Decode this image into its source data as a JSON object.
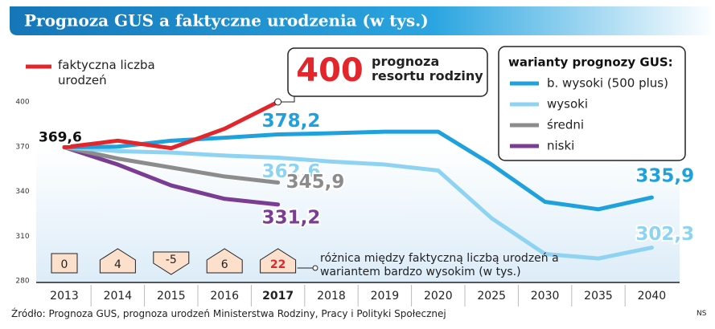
{
  "chart_data": {
    "type": "line",
    "title": "Prognoza GUS a faktyczne urodzenia (w tys.)",
    "categories": [
      "2013",
      "2014",
      "2015",
      "2016",
      "2017",
      "2018",
      "2019",
      "2020",
      "2025",
      "2030",
      "2035",
      "2040"
    ],
    "ylim": [
      280,
      400
    ],
    "yticks": [
      280,
      310,
      340,
      370,
      400
    ],
    "grid": false,
    "legend_title": "warianty prognozy GUS:",
    "series": [
      {
        "name": "faktyczna liczba urodzeń",
        "color": "#e3262b",
        "values": [
          369.6,
          374,
          369,
          382,
          400,
          null,
          null,
          null,
          null,
          null,
          null,
          null
        ],
        "value_labels": [
          "369,6",
          null,
          null,
          null,
          null,
          null,
          null,
          null,
          null,
          null,
          null,
          null
        ]
      },
      {
        "name": "b. wysoki (500 plus)",
        "color": "#1ea1dc",
        "values": [
          369.6,
          370,
          374,
          376,
          378.2,
          379,
          380,
          380,
          358,
          333,
          328,
          335.9
        ],
        "value_labels": [
          null,
          null,
          null,
          null,
          "378,2",
          null,
          null,
          null,
          null,
          null,
          null,
          "335,9"
        ]
      },
      {
        "name": "wysoki",
        "color": "#8fd3f2",
        "values": [
          369.6,
          367,
          366,
          364,
          362.6,
          360,
          358,
          354,
          322,
          298,
          295,
          302.3
        ],
        "value_labels": [
          null,
          null,
          null,
          null,
          "362,6",
          null,
          null,
          null,
          null,
          null,
          null,
          "302,3"
        ]
      },
      {
        "name": "średni",
        "color": "#8c8c8c",
        "values": [
          369.6,
          362,
          356,
          350,
          345.9,
          null,
          null,
          null,
          null,
          null,
          null,
          null
        ],
        "value_labels": [
          null,
          null,
          null,
          null,
          "345,9",
          null,
          null,
          null,
          null,
          null,
          null,
          null
        ]
      },
      {
        "name": "niski",
        "color": "#7b3c94",
        "values": [
          369.6,
          358,
          344,
          335,
          331.2,
          null,
          null,
          null,
          null,
          null,
          null,
          null
        ],
        "value_labels": [
          null,
          null,
          null,
          null,
          "331,2",
          null,
          null,
          null,
          null,
          null,
          null,
          null
        ]
      }
    ],
    "callout": {
      "value": 400,
      "text": "prognoza resortu rodziny"
    },
    "differences": [
      0,
      4,
      -5,
      6,
      22
    ],
    "differences_note": "różnica między faktyczną liczbą urodzeń a wariantem bardzo wysokim (w tys.)",
    "source": "Źródło: Prognoza GUS, prognoza urodzeń Ministerstwa Rodziny, Pracy i Polityki Społecznej",
    "credit": "NS"
  }
}
